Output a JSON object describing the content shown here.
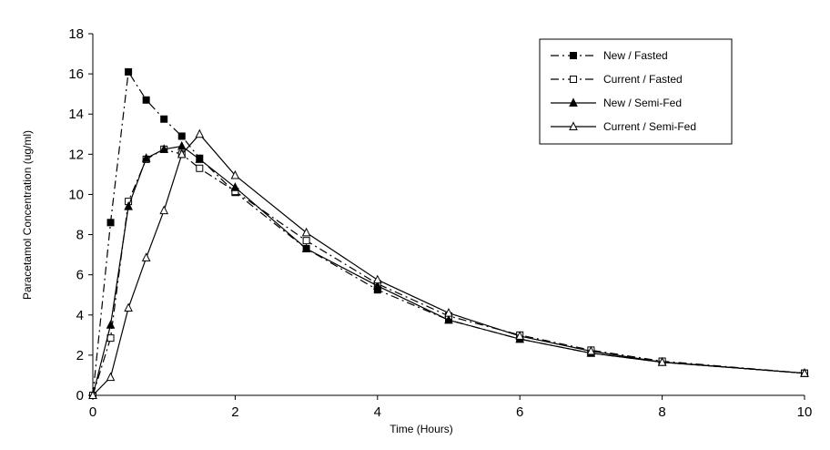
{
  "chart_data": {
    "type": "line",
    "title": "",
    "xlabel": "Time (Hours)",
    "ylabel": "Paracetamol Concentration (ug/ml)",
    "xlim": [
      0,
      10
    ],
    "ylim": [
      0,
      18
    ],
    "x_ticks": [
      0,
      2,
      4,
      6,
      8,
      10
    ],
    "y_ticks": [
      0,
      2,
      4,
      6,
      8,
      10,
      12,
      14,
      16,
      18
    ],
    "grid": false,
    "legend_position": "top-right",
    "series": [
      {
        "name": "New / Fasted",
        "marker": "square-filled",
        "line_style": "dash-dot",
        "x": [
          0,
          0.25,
          0.5,
          0.75,
          1,
          1.25,
          1.5,
          2,
          3,
          4,
          5,
          6,
          7,
          8,
          10
        ],
        "y": [
          0,
          8.6,
          16.1,
          14.7,
          13.75,
          12.9,
          11.8,
          10.1,
          7.3,
          5.25,
          3.75,
          2.8,
          2.1,
          1.65,
          1.1
        ]
      },
      {
        "name": "Current / Fasted",
        "marker": "square-open",
        "line_style": "dash-dot",
        "x": [
          0,
          0.25,
          0.5,
          0.75,
          1,
          1.25,
          1.5,
          2,
          3,
          4,
          5,
          6,
          7,
          8,
          10
        ],
        "y": [
          0,
          2.85,
          9.65,
          11.75,
          12.25,
          12.0,
          11.3,
          10.15,
          7.7,
          5.55,
          3.95,
          3.0,
          2.25,
          1.7,
          1.1
        ]
      },
      {
        "name": "New / Semi-Fed",
        "marker": "triangle-filled",
        "line_style": "solid",
        "x": [
          0,
          0.25,
          0.5,
          0.75,
          1,
          1.25,
          1.5,
          2,
          3,
          4,
          5,
          6,
          7,
          8,
          10
        ],
        "y": [
          0,
          3.5,
          9.4,
          11.8,
          12.25,
          12.4,
          11.75,
          10.35,
          7.3,
          5.45,
          3.75,
          2.8,
          2.1,
          1.65,
          1.1
        ]
      },
      {
        "name": "Current / Semi-Fed",
        "marker": "triangle-open",
        "line_style": "solid",
        "x": [
          0,
          0.25,
          0.5,
          0.75,
          1,
          1.25,
          1.5,
          2,
          3,
          4,
          5,
          6,
          7,
          8,
          10
        ],
        "y": [
          0,
          0.9,
          4.35,
          6.85,
          9.2,
          12.0,
          13.0,
          10.95,
          8.1,
          5.75,
          4.1,
          2.95,
          2.2,
          1.65,
          1.1
        ]
      }
    ]
  }
}
